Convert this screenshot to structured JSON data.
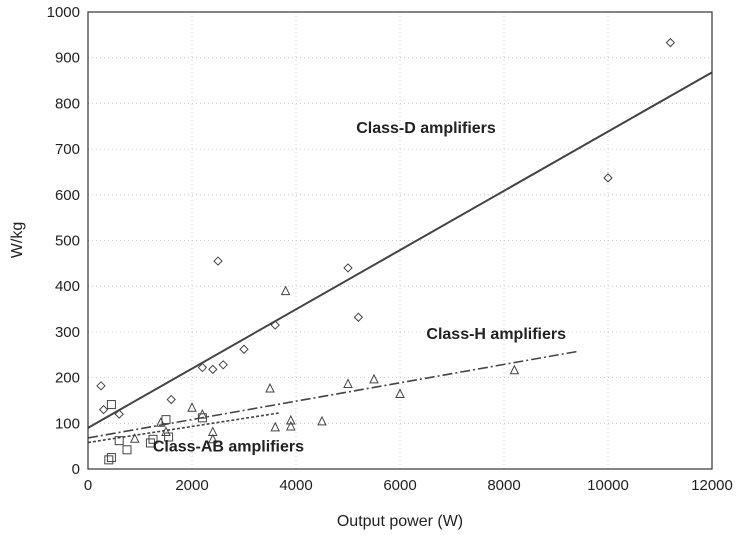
{
  "chart_data": {
    "type": "scatter",
    "xlabel": "Output power (W)",
    "ylabel": "W/kg",
    "xlim": [
      0,
      12000
    ],
    "ylim": [
      0,
      1000
    ],
    "xticks": [
      0,
      2000,
      4000,
      6000,
      8000,
      10000,
      12000
    ],
    "yticks": [
      0,
      100,
      200,
      300,
      400,
      500,
      600,
      700,
      800,
      900,
      1000
    ],
    "grid": true,
    "marker_colors": {
      "line": "#444444",
      "grid": "#bdbdbd"
    },
    "series": [
      {
        "name": "Class-D amplifiers",
        "marker": "diamond",
        "points": [
          [
            250,
            182
          ],
          [
            300,
            130
          ],
          [
            600,
            120
          ],
          [
            1600,
            152
          ],
          [
            2200,
            222
          ],
          [
            2500,
            455
          ],
          [
            2600,
            228
          ],
          [
            2400,
            218
          ],
          [
            3000,
            262
          ],
          [
            3600,
            315
          ],
          [
            5000,
            440
          ],
          [
            5200,
            332
          ],
          [
            10000,
            637
          ],
          [
            11200,
            933
          ]
        ],
        "fit": {
          "x": [
            0,
            12000
          ],
          "y": [
            90,
            868
          ],
          "style": "solid"
        }
      },
      {
        "name": "Class-H amplifiers",
        "marker": "triangle",
        "points": [
          [
            1400,
            100
          ],
          [
            1500,
            80
          ],
          [
            2000,
            133
          ],
          [
            2200,
            118
          ],
          [
            2400,
            80
          ],
          [
            2400,
            64
          ],
          [
            3500,
            175
          ],
          [
            3600,
            90
          ],
          [
            3800,
            388
          ],
          [
            3900,
            105
          ],
          [
            3900,
            92
          ],
          [
            4500,
            103
          ],
          [
            5000,
            185
          ],
          [
            5500,
            195
          ],
          [
            6000,
            163
          ],
          [
            8200,
            215
          ],
          [
            900,
            65
          ]
        ],
        "fit": {
          "x": [
            0,
            9400
          ],
          "y": [
            68,
            257
          ],
          "style": "dashdot"
        }
      },
      {
        "name": "Class-AB amplifiers",
        "marker": "square",
        "points": [
          [
            400,
            20
          ],
          [
            450,
            25
          ],
          [
            450,
            141
          ],
          [
            600,
            62
          ],
          [
            750,
            42
          ],
          [
            1200,
            57
          ],
          [
            1250,
            65
          ],
          [
            1500,
            108
          ],
          [
            1550,
            70
          ],
          [
            2200,
            112
          ]
        ],
        "fit": {
          "x": [
            0,
            3700
          ],
          "y": [
            58,
            123
          ],
          "style": "dotted"
        }
      }
    ],
    "annotations": [
      {
        "text": "Class-D amplifiers",
        "x": 6500,
        "y": 735
      },
      {
        "text": "Class-H amplifiers",
        "x": 7850,
        "y": 285
      },
      {
        "text": "Class-AB amplifiers",
        "x": 2700,
        "y": 38
      }
    ]
  }
}
